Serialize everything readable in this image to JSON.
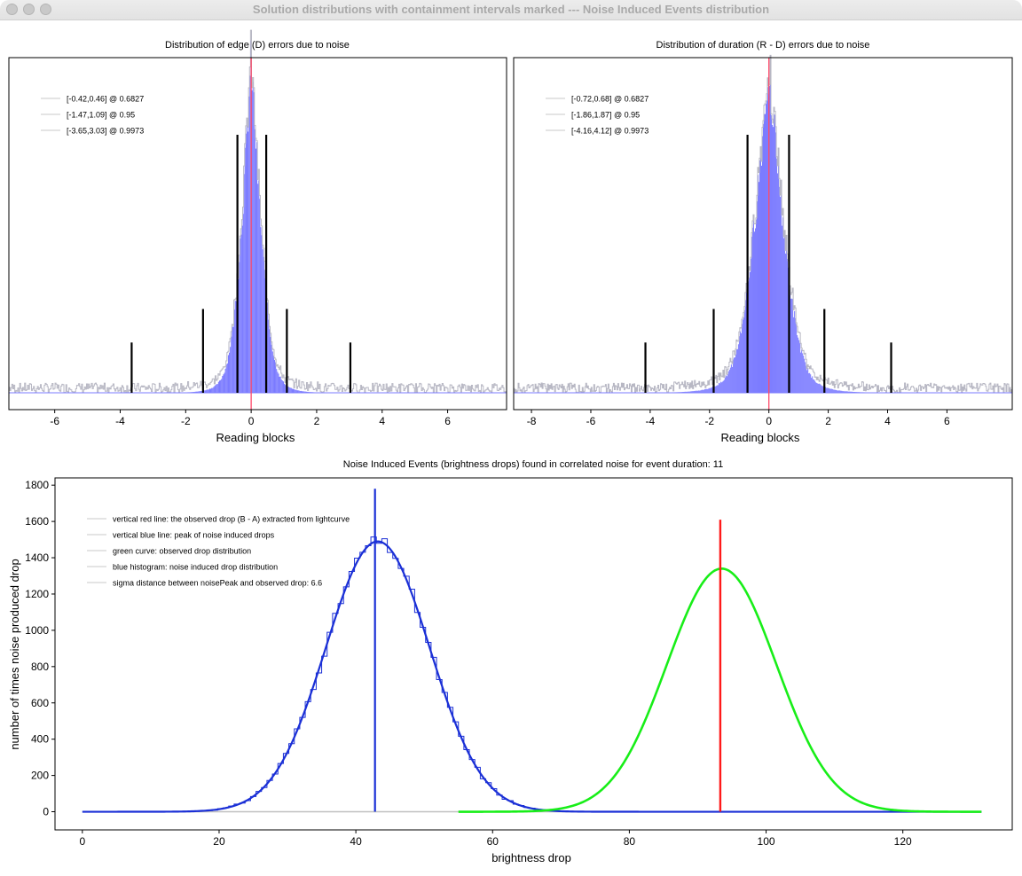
{
  "window": {
    "title": "Solution distributions with containment intervals marked --- Noise Induced Events distribution",
    "controls": [
      "close",
      "minimize",
      "zoom"
    ]
  },
  "colors": {
    "histogram_fill": "#7b7bff",
    "histogram_outline": "#b8b8c4",
    "center_line": "#ff4a6a",
    "interval_lines": "#000000",
    "noise_curve": "#1a2fd6",
    "observed_curve": "#18ee18",
    "observed_line": "#ff1a1a",
    "baseline": "#c0c0c0"
  },
  "chart_data": [
    {
      "type": "bar",
      "title": "Distribution of edge (D) errors due to noise",
      "xlabel": "Reading blocks",
      "ylabel": "",
      "xlim": [
        -7.4,
        7.8
      ],
      "xticks": [
        -6,
        -4,
        -2,
        0,
        2,
        4,
        6
      ],
      "distribution": {
        "center": 0.0,
        "sigma": 0.44,
        "peak_fraction": 0.97
      },
      "center_line": 0,
      "intervals": [
        {
          "label": "[-0.42,0.46] @ 0.6827",
          "lo": -0.42,
          "hi": 0.46,
          "height_fraction": 0.77
        },
        {
          "label": "[-1.47,1.09] @ 0.95",
          "lo": -1.47,
          "hi": 1.09,
          "height_fraction": 0.25
        },
        {
          "label": "[-3.65,3.03] @ 0.9973",
          "lo": -3.65,
          "hi": 3.03,
          "height_fraction": 0.15
        }
      ],
      "grid": false,
      "legend": "top-left"
    },
    {
      "type": "bar",
      "title": "Distribution of duration (R - D) errors due to noise",
      "xlabel": "Reading blocks",
      "ylabel": "",
      "xlim": [
        -8.6,
        8.2
      ],
      "xticks": [
        -8,
        -6,
        -4,
        -2,
        0,
        2,
        4,
        6
      ],
      "distribution": {
        "center": 0.0,
        "sigma": 0.72,
        "peak_fraction": 0.97
      },
      "center_line": 0,
      "intervals": [
        {
          "label": "[-0.72,0.68] @ 0.6827",
          "lo": -0.72,
          "hi": 0.68,
          "height_fraction": 0.77
        },
        {
          "label": "[-1.86,1.87] @ 0.95",
          "lo": -1.86,
          "hi": 1.87,
          "height_fraction": 0.25
        },
        {
          "label": "[-4.16,4.12] @ 0.9973",
          "lo": -4.16,
          "hi": 4.12,
          "height_fraction": 0.15
        }
      ],
      "grid": false,
      "legend": "top-left"
    },
    {
      "type": "line",
      "title": "Noise Induced Events (brightness drops) found in correlated noise for event duration: 11",
      "xlabel": "brightness drop",
      "ylabel": "number of times noise produced drop",
      "xlim": [
        -4,
        136
      ],
      "ylim": [
        -100,
        1840
      ],
      "xticks": [
        0,
        20,
        40,
        60,
        80,
        100,
        120
      ],
      "yticks": [
        0,
        200,
        400,
        600,
        800,
        1000,
        1200,
        1400,
        1600,
        1800
      ],
      "legend_entries": [
        "vertical red line: the observed drop (B - A) extracted from lightcurve",
        "vertical blue line: peak of noise induced drops",
        "green curve: observed drop distribution",
        "blue histogram: noise induced drop distribution",
        "sigma distance between noisePeak and observed drop: 6.6"
      ],
      "series": [
        {
          "name": "blue histogram: noise induced drop distribution",
          "center": 43.2,
          "sigma": 7.6,
          "peak": 1490,
          "x_range": [
            0,
            131.5
          ]
        },
        {
          "name": "green curve: observed drop distribution",
          "center": 93.5,
          "sigma": 8.0,
          "peak": 1340,
          "x_range": [
            55,
            131.5
          ]
        }
      ],
      "vlines": [
        {
          "name": "vertical blue line: peak of noise induced drops",
          "x": 42.8,
          "y_top": 1780
        },
        {
          "name": "vertical red line: the observed drop (B - A) extracted from lightcurve",
          "x": 93.3,
          "y_top": 1610
        }
      ],
      "grid": false,
      "legend": "top-left"
    }
  ]
}
